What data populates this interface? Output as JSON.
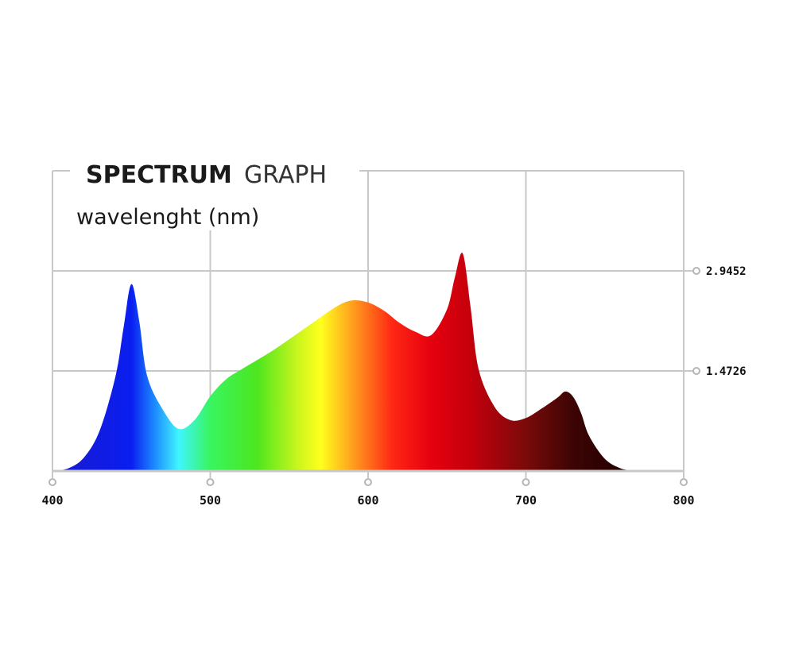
{
  "chart_data": {
    "type": "area",
    "title_bold": "SPECTRUM",
    "title_light": "GRAPH",
    "subtitle": "wavelenght (nm)",
    "xlim": [
      400,
      800
    ],
    "ylim": [
      0,
      4.4178
    ],
    "x_ticks": [
      "400",
      "500",
      "600",
      "700",
      "800"
    ],
    "y_ticks": [
      {
        "value": 1.4726,
        "label": "1.4726"
      },
      {
        "value": 2.9452,
        "label": "2.9452"
      }
    ],
    "grid": true,
    "series": [
      {
        "x": [
          400,
          410,
          420,
          430,
          440,
          445,
          450,
          455,
          460,
          470,
          480,
          490,
          500,
          510,
          520,
          540,
          560,
          580,
          590,
          600,
          610,
          620,
          630,
          640,
          650,
          655,
          660,
          665,
          670,
          680,
          690,
          700,
          710,
          720,
          725,
          730,
          735,
          740,
          750,
          760,
          770
        ],
        "y": [
          0.0,
          0.04,
          0.2,
          0.6,
          1.4,
          2.1,
          2.75,
          2.2,
          1.4,
          0.9,
          0.62,
          0.75,
          1.1,
          1.35,
          1.5,
          1.78,
          2.1,
          2.42,
          2.51,
          2.48,
          2.36,
          2.18,
          2.05,
          2.0,
          2.38,
          2.85,
          3.2,
          2.4,
          1.5,
          0.95,
          0.75,
          0.78,
          0.92,
          1.08,
          1.17,
          1.09,
          0.85,
          0.52,
          0.18,
          0.04,
          0.0
        ]
      }
    ],
    "gradient_stops": [
      {
        "x": 400,
        "color": "#1a1acc"
      },
      {
        "x": 450,
        "color": "#0a1ef0"
      },
      {
        "x": 465,
        "color": "#1e8cff"
      },
      {
        "x": 480,
        "color": "#40f5ff"
      },
      {
        "x": 500,
        "color": "#38f560"
      },
      {
        "x": 530,
        "color": "#4ee61e"
      },
      {
        "x": 555,
        "color": "#c8f51e"
      },
      {
        "x": 570,
        "color": "#ffff1e"
      },
      {
        "x": 590,
        "color": "#ffa01e"
      },
      {
        "x": 615,
        "color": "#ff2814"
      },
      {
        "x": 640,
        "color": "#e6000f"
      },
      {
        "x": 665,
        "color": "#c4000c"
      },
      {
        "x": 700,
        "color": "#7a0a0a"
      },
      {
        "x": 730,
        "color": "#3c0404"
      },
      {
        "x": 770,
        "color": "#1e0000"
      }
    ]
  }
}
